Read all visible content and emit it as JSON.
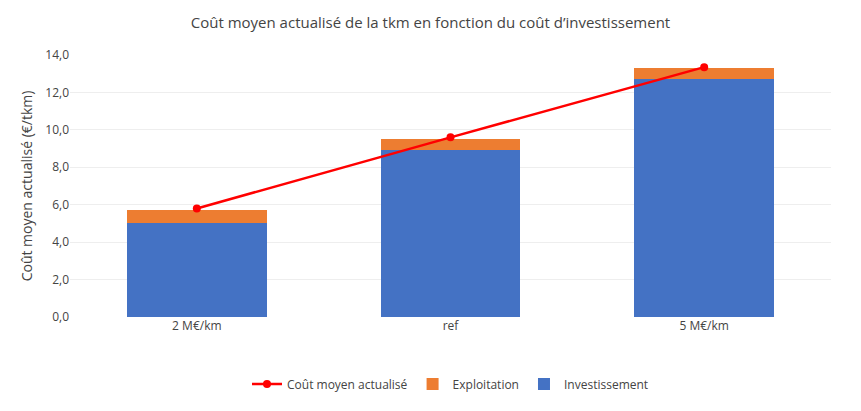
{
  "chart_data": {
    "type": "bar",
    "title": "Coût moyen actualisé de la tkm en fonction du coût d’investissement",
    "ylabel": "Coût moyen actualisé (€/tkm)",
    "categories": [
      "2 M€/km",
      "ref",
      "5 M€/km"
    ],
    "series": [
      {
        "name": "Investissement",
        "type": "bar",
        "color": "#4472C4",
        "values": [
          5.0,
          8.9,
          12.7
        ]
      },
      {
        "name": "Exploitation",
        "type": "bar",
        "color": "#ED7D31",
        "values": [
          0.7,
          0.6,
          0.6
        ]
      },
      {
        "name": "Coût moyen actualisé",
        "type": "line",
        "color": "#FF0000",
        "marker": "circle",
        "values": [
          5.8,
          9.6,
          13.35
        ]
      }
    ],
    "stacked": true,
    "ylim": [
      0,
      14.0
    ],
    "yticks": [
      {
        "value": 0.0,
        "label": "0,0"
      },
      {
        "value": 2.0,
        "label": "2,0"
      },
      {
        "value": 4.0,
        "label": "4,0"
      },
      {
        "value": 6.0,
        "label": "6,0"
      },
      {
        "value": 8.0,
        "label": "8,0"
      },
      {
        "value": 10.0,
        "label": "10,0"
      },
      {
        "value": 12.0,
        "label": "12,0"
      },
      {
        "value": 14.0,
        "label": "14,0"
      }
    ],
    "grid": true,
    "legend": "bottom"
  }
}
